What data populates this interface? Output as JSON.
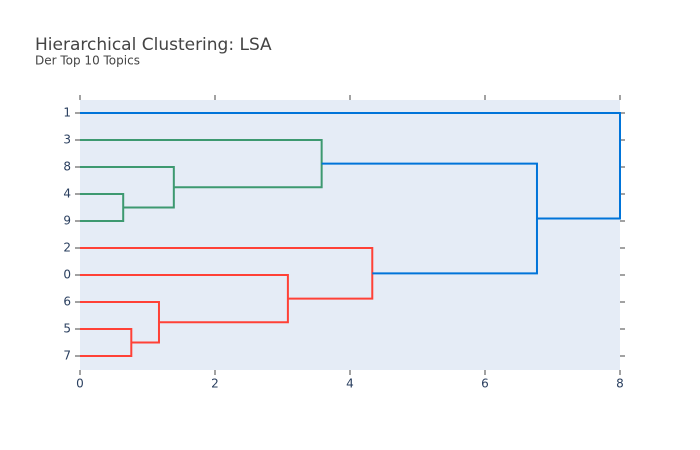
{
  "chart_data": {
    "type": "dendrogram",
    "title": "Hierarchical Clustering: LSA",
    "subtitle": "Der Top 10 Topics",
    "xlim": [
      0,
      8
    ],
    "xticks": [
      0,
      2,
      4,
      6,
      8
    ],
    "tree": {
      "height": 8,
      "color": "#0074d9",
      "children": [
        "1",
        {
          "height": 6.77,
          "color": "#0074d9",
          "children": [
            {
              "height": 3.58,
              "color": "#3d9970",
              "children": [
                "3",
                {
                  "height": 1.39,
                  "color": "#3d9970",
                  "children": [
                    "8",
                    {
                      "height": 0.64,
                      "color": "#3d9970",
                      "children": [
                        "4",
                        "9"
                      ]
                    }
                  ]
                }
              ]
            },
            {
              "height": 4.33,
              "color": "#ff4136",
              "children": [
                "2",
                {
                  "height": 3.08,
                  "color": "#ff4136",
                  "children": [
                    "0",
                    {
                      "height": 1.17,
                      "color": "#ff4136",
                      "children": [
                        "6",
                        {
                          "height": 0.76,
                          "color": "#ff4136",
                          "children": [
                            "5",
                            "7"
                          ]
                        }
                      ]
                    }
                  ]
                }
              ]
            }
          ]
        }
      ]
    }
  }
}
